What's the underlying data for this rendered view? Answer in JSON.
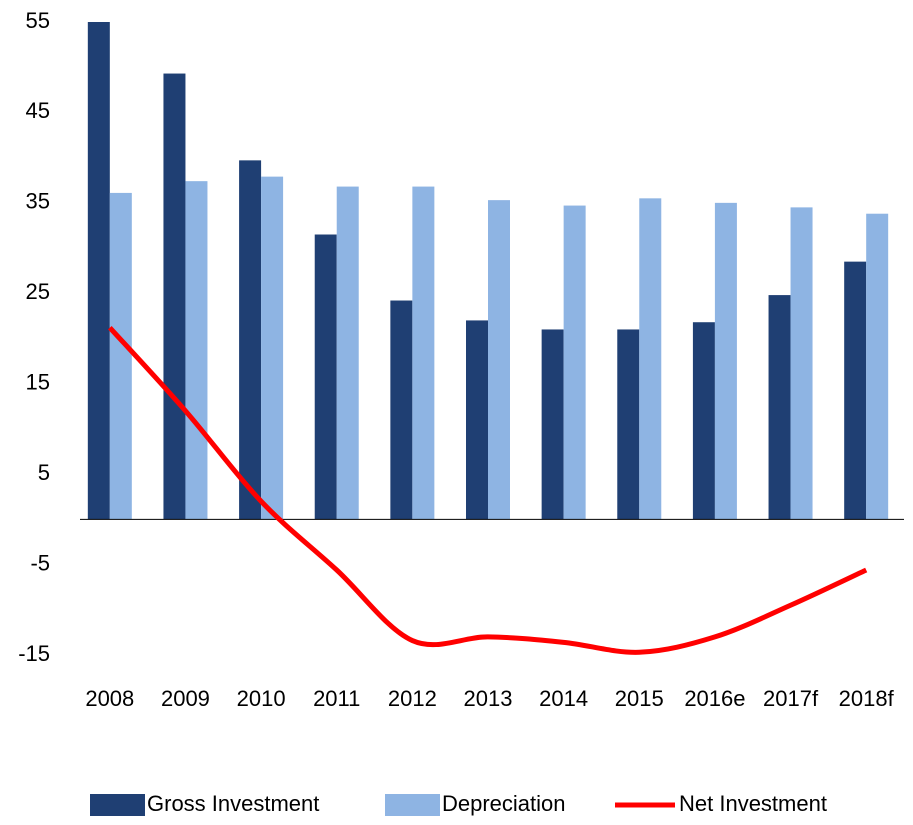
{
  "chart_data": {
    "type": "bar-line",
    "categories": [
      "2008",
      "2009",
      "2010",
      "2011",
      "2012",
      "2013",
      "2014",
      "2015",
      "2016e",
      "2017f",
      "2018f"
    ],
    "series": [
      {
        "name": "Gross Investment",
        "color": "#1f3f73",
        "type": "bar",
        "values": [
          55,
          49.3,
          39.7,
          31.5,
          24.2,
          22,
          21,
          21,
          21.8,
          24.8,
          28.5
        ]
      },
      {
        "name": "Depreciation",
        "color": "#8eb4e3",
        "type": "bar",
        "values": [
          36.1,
          37.4,
          37.9,
          36.8,
          36.8,
          35.3,
          34.7,
          35.5,
          35,
          34.5,
          33.8
        ]
      },
      {
        "name": "Net Investment",
        "color": "#ff0000",
        "type": "line",
        "values": [
          21.2,
          12,
          2,
          -5.6,
          -13.4,
          -13,
          -13.6,
          -14.7,
          -13,
          -9.5,
          -5.6
        ]
      }
    ],
    "ylim": [
      -15,
      55
    ],
    "yticks": [
      -15,
      -5,
      5,
      15,
      25,
      35,
      45,
      55
    ],
    "grid": false
  }
}
